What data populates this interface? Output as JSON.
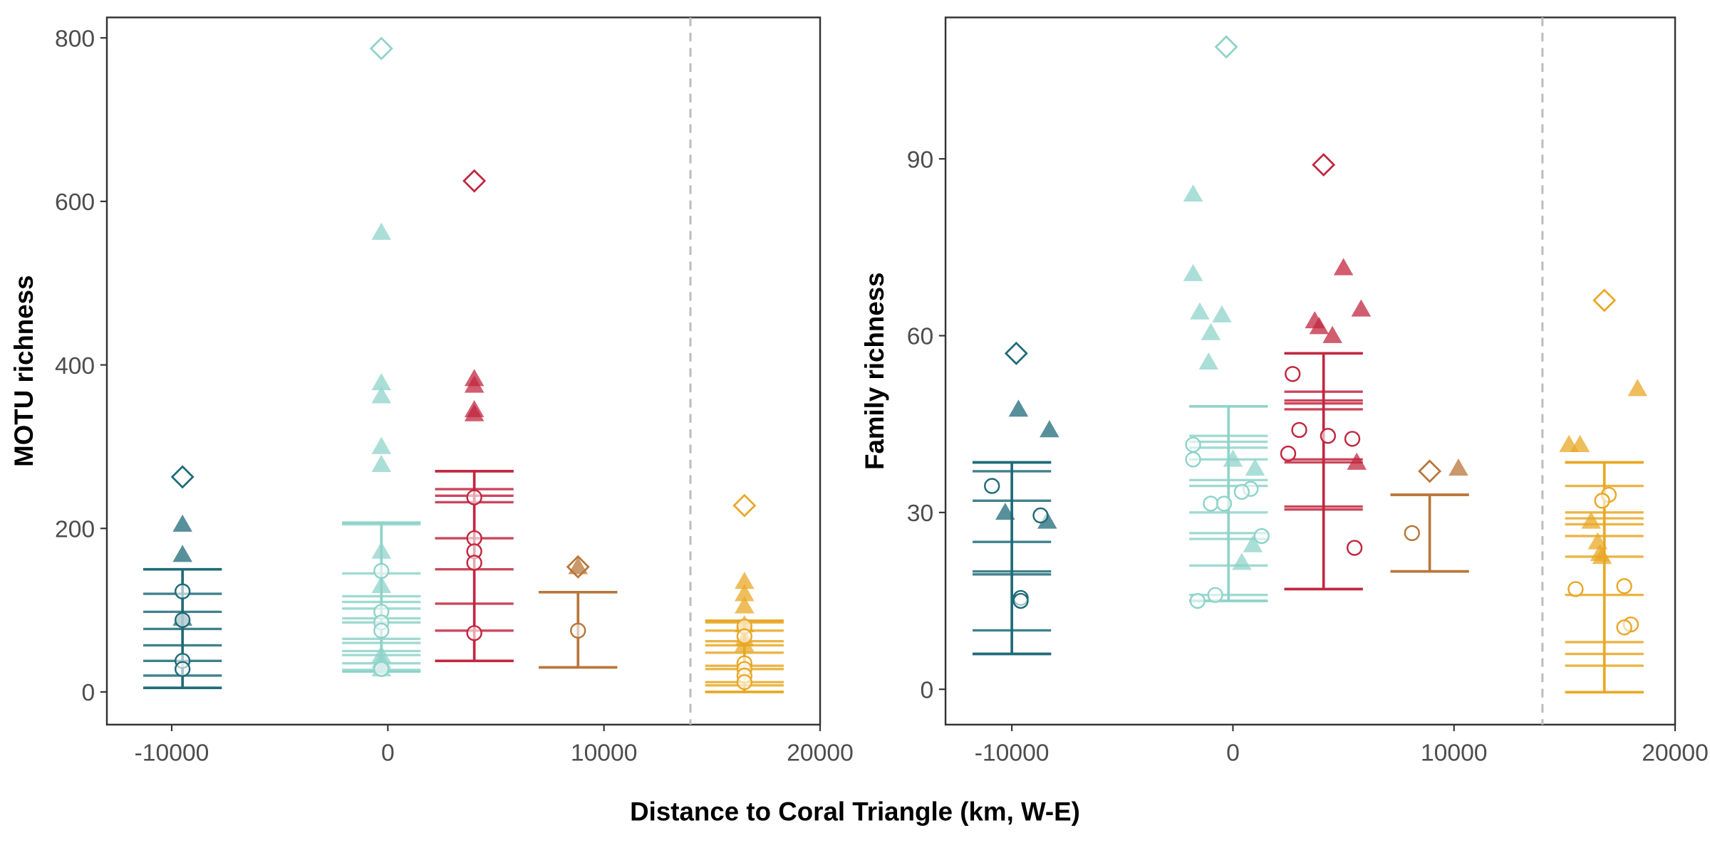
{
  "figure": {
    "xlabel": "Distance to Coral Triangle (km, W-E)"
  },
  "chart_data": [
    {
      "type": "scatter",
      "title": "",
      "xlabel": "Distance to Coral Triangle (km, W-E)",
      "ylabel": "MOTU richness",
      "xlim": [
        -13000,
        20000
      ],
      "ylim": [
        -40,
        825
      ],
      "x_ticks": [
        -10000,
        0,
        10000,
        20000
      ],
      "x_tick_labels": [
        "-10000",
        "0",
        "10000",
        "20000"
      ],
      "y_ticks": [
        0,
        200,
        400,
        600,
        800
      ],
      "y_tick_labels": [
        "0",
        "200",
        "400",
        "600",
        "800"
      ],
      "reference_line_x": 14000,
      "grid": false,
      "groups": [
        {
          "color": "#1f6b78",
          "x": -9500,
          "error_bar": {
            "low": 5,
            "high": 150
          },
          "hlines": [
            5,
            20,
            38,
            57,
            77,
            98,
            120,
            150
          ],
          "diamond": 263,
          "triangles": [
            205,
            168,
            90
          ],
          "circles": [
            123,
            88,
            38,
            28
          ]
        },
        {
          "color": "#8fd3c9",
          "x": -300,
          "error_bar": {
            "low": 25,
            "high": 207
          },
          "hlines": [
            27,
            35,
            45,
            50,
            60,
            65,
            85,
            90,
            102,
            110,
            117,
            145,
            205
          ],
          "diamond": 787,
          "triangles": [
            562,
            378,
            362,
            300,
            278,
            172,
            130,
            45,
            38,
            28
          ],
          "circles": [
            148,
            98,
            85,
            75,
            28
          ]
        },
        {
          "color": "#c1273f",
          "x": 4000,
          "error_bar": {
            "low": 38,
            "high": 270
          },
          "hlines": [
            38,
            75,
            108,
            150,
            188,
            232,
            240,
            248,
            270
          ],
          "diamond": 625,
          "triangles": [
            383,
            375,
            345,
            340
          ],
          "circles": [
            238,
            188,
            172,
            158,
            72
          ]
        },
        {
          "color": "#b8763a",
          "x": 8800,
          "error_bar": {
            "low": 30,
            "high": 122
          },
          "hlines": [
            30,
            122
          ],
          "diamond": 153,
          "triangles": [
            153
          ],
          "circles": [
            75
          ]
        },
        {
          "color": "#e8a826",
          "x": 16500,
          "error_bar": {
            "low": 0,
            "high": 87
          },
          "hlines": [
            0,
            8,
            12,
            28,
            32,
            48,
            57,
            62,
            75,
            85
          ],
          "diamond": 228,
          "triangles": [
            135,
            120,
            105,
            82,
            65,
            58
          ],
          "circles": [
            80,
            68,
            35,
            28,
            20,
            12
          ]
        }
      ]
    },
    {
      "type": "scatter",
      "title": "",
      "xlabel": "Distance to Coral Triangle (km, W-E)",
      "ylabel": "Family richness",
      "xlim": [
        -13000,
        20000
      ],
      "ylim": [
        -6,
        114
      ],
      "x_ticks": [
        -10000,
        0,
        10000,
        20000
      ],
      "x_tick_labels": [
        "-10000",
        "0",
        "10000",
        "20000"
      ],
      "y_ticks": [
        0,
        30,
        60,
        90
      ],
      "y_tick_labels": [
        "0",
        "30",
        "60",
        "90"
      ],
      "reference_line_x": 14000,
      "grid": false,
      "groups": [
        {
          "color": "#1f6b78",
          "x": -10000,
          "error_bar": {
            "low": 6,
            "high": 38.5
          },
          "hlines": [
            6,
            10,
            19.5,
            20,
            25,
            32,
            37,
            38.5
          ],
          "diamond": 57,
          "diamond_x": -9800,
          "triangles": [
            {
              "x": -9700,
              "y": 47.5
            },
            {
              "x": -8300,
              "y": 44
            },
            {
              "x": -10300,
              "y": 30
            },
            {
              "x": -8400,
              "y": 28.5
            }
          ],
          "circles": [
            {
              "x": -10900,
              "y": 34.5
            },
            {
              "x": -8700,
              "y": 29.5
            },
            {
              "x": -9600,
              "y": 15.5
            },
            {
              "x": -9600,
              "y": 15
            }
          ]
        },
        {
          "color": "#8fd3c9",
          "x": -200,
          "error_bar": {
            "low": 15,
            "high": 48
          },
          "hlines": [
            15,
            16,
            21,
            25.5,
            26.5,
            30,
            34.5,
            35.5,
            39,
            41,
            42,
            43,
            48
          ],
          "diamond": 109,
          "diamond_x": -300,
          "triangles": [
            {
              "x": -1800,
              "y": 84
            },
            {
              "x": -1800,
              "y": 70.5
            },
            {
              "x": -1500,
              "y": 64
            },
            {
              "x": -500,
              "y": 63.5
            },
            {
              "x": -1000,
              "y": 60.5
            },
            {
              "x": -1100,
              "y": 55.5
            },
            {
              "x": 0,
              "y": 39
            },
            {
              "x": 1000,
              "y": 37.5
            },
            {
              "x": 900,
              "y": 24.5
            },
            {
              "x": 400,
              "y": 21.5
            }
          ],
          "circles": [
            {
              "x": -1800,
              "y": 41.5
            },
            {
              "x": -1800,
              "y": 39
            },
            {
              "x": 800,
              "y": 34
            },
            {
              "x": 400,
              "y": 33.5
            },
            {
              "x": -1000,
              "y": 31.5
            },
            {
              "x": -400,
              "y": 31.5
            },
            {
              "x": 1300,
              "y": 26
            },
            {
              "x": -1600,
              "y": 15
            },
            {
              "x": -800,
              "y": 16
            }
          ]
        },
        {
          "color": "#c1273f",
          "x": 4100,
          "error_bar": {
            "low": 17,
            "high": 57
          },
          "hlines": [
            17,
            30.5,
            31,
            38.5,
            39,
            47.5,
            48.5,
            49,
            50.5,
            57
          ],
          "diamond": 89,
          "diamond_x": 4100,
          "triangles": [
            {
              "x": 5000,
              "y": 71.5
            },
            {
              "x": 5800,
              "y": 64.5
            },
            {
              "x": 3700,
              "y": 62.5
            },
            {
              "x": 3900,
              "y": 61.5
            },
            {
              "x": 4500,
              "y": 60
            },
            {
              "x": 5600,
              "y": 38.5
            }
          ],
          "circles": [
            {
              "x": 2700,
              "y": 53.5
            },
            {
              "x": 3000,
              "y": 44
            },
            {
              "x": 4300,
              "y": 43
            },
            {
              "x": 5400,
              "y": 42.5
            },
            {
              "x": 2500,
              "y": 40
            },
            {
              "x": 5500,
              "y": 24
            }
          ]
        },
        {
          "color": "#b8763a",
          "x": 8900,
          "error_bar": {
            "low": 20,
            "high": 33
          },
          "hlines": [
            20,
            33
          ],
          "diamond": 37,
          "diamond_x": 8900,
          "triangles": [
            {
              "x": 10200,
              "y": 37.5
            }
          ],
          "circles": [
            {
              "x": 8100,
              "y": 26.5
            }
          ]
        },
        {
          "color": "#e8a826",
          "x": 16800,
          "error_bar": {
            "low": -0.5,
            "high": 38.5
          },
          "hlines": [
            -0.5,
            4,
            6,
            8,
            16,
            22.5,
            26,
            28,
            29,
            30,
            34.5,
            38.5
          ],
          "diamond": 66,
          "diamond_x": 16800,
          "triangles": [
            {
              "x": 18300,
              "y": 51
            },
            {
              "x": 15200,
              "y": 41.5
            },
            {
              "x": 15700,
              "y": 41.5
            },
            {
              "x": 16200,
              "y": 28.5
            },
            {
              "x": 16500,
              "y": 25
            },
            {
              "x": 16600,
              "y": 23
            },
            {
              "x": 16700,
              "y": 22.5
            }
          ],
          "circles": [
            {
              "x": 17000,
              "y": 33
            },
            {
              "x": 16700,
              "y": 32
            },
            {
              "x": 17700,
              "y": 17.5
            },
            {
              "x": 15500,
              "y": 17
            },
            {
              "x": 18000,
              "y": 11
            },
            {
              "x": 17700,
              "y": 10.5
            }
          ]
        }
      ]
    }
  ]
}
